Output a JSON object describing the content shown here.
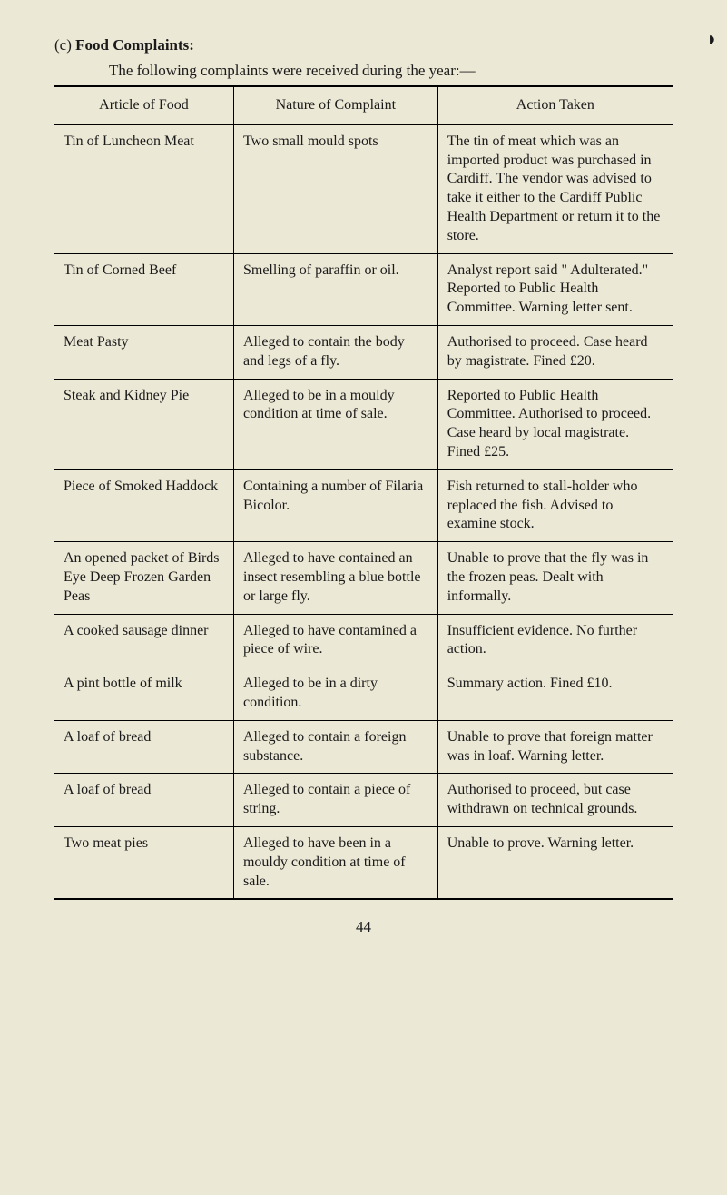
{
  "page_marker": "◗",
  "heading": {
    "label": "(c)",
    "title": "Food Complaints:"
  },
  "intro": "The following complaints were received during the year:—",
  "table": {
    "headers": [
      "Article of Food",
      "Nature of Complaint",
      "Action Taken"
    ],
    "rows": [
      {
        "article": "Tin of Luncheon Meat",
        "nature": "Two small mould spots",
        "action": "The tin of meat which was an imported product was purchased in Cardiff. The vendor was advised to take it either to the Cardiff Public Health Department or return it to the store."
      },
      {
        "article": "Tin of Corned Beef",
        "nature": "Smelling of paraffin or oil.",
        "action": "Analyst report said \" Adulterated.\" Reported to Public Health Committee. Warning letter sent."
      },
      {
        "article": "Meat Pasty",
        "nature": "Alleged to contain the body and legs of a fly.",
        "action": "Authorised to proceed. Case heard by magistrate. Fined £20."
      },
      {
        "article": "Steak and Kidney Pie",
        "nature": "Alleged to be in a mouldy condition at time of sale.",
        "action": "Reported to Public Health Committee. Authorised to proceed. Case heard by local magistrate. Fined £25."
      },
      {
        "article": "Piece of Smoked Haddock",
        "nature": "Containing a number of Filaria Bicolor.",
        "action": "Fish returned to stall-holder who replaced the fish. Advised to examine stock."
      },
      {
        "article": "An opened packet of Birds Eye Deep Frozen Garden Peas",
        "nature": "Alleged to have contained an insect resembling a blue bottle or large fly.",
        "action": "Unable to prove that the fly was in the frozen peas. Dealt with informally."
      },
      {
        "article": "A cooked sausage dinner",
        "nature": "Alleged to have contamined a piece of wire.",
        "action": "Insufficient evidence. No further action."
      },
      {
        "article": "A pint bottle of milk",
        "nature": "Alleged to be in a dirty condition.",
        "action": "Summary action. Fined £10."
      },
      {
        "article": "A loaf of bread",
        "nature": "Alleged to contain a foreign substance.",
        "action": "Unable to prove that foreign matter was in loaf. Warning letter."
      },
      {
        "article": "A loaf of bread",
        "nature": "Alleged to contain a piece of string.",
        "action": "Authorised to proceed, but case withdrawn on technical grounds."
      },
      {
        "article": "Two meat pies",
        "nature": "Alleged to have been in a mouldy condition at time of sale.",
        "action": "Unable to prove. Warning letter."
      }
    ]
  },
  "page_number": "44",
  "colors": {
    "background": "#ece8d6",
    "text": "#1a1a1a",
    "border": "#000000"
  },
  "typography": {
    "body_fontsize": 16,
    "heading_fontsize": 17,
    "font_family": "Times New Roman"
  }
}
